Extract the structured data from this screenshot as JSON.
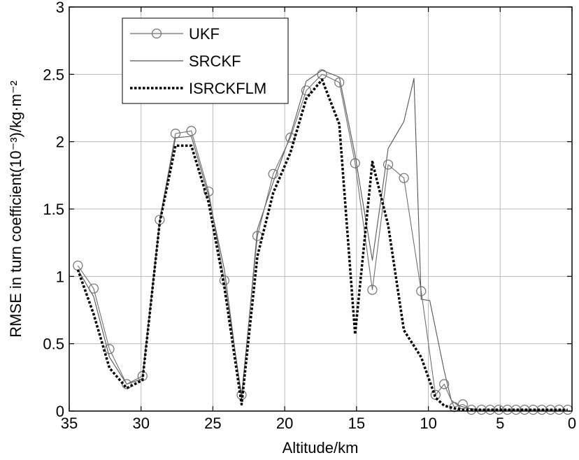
{
  "chart_data": {
    "type": "line",
    "xlabel": "Altitude/km",
    "ylabel": "RMSE in turn coefficient(10⁻³)/kg·m⁻²",
    "xlim": [
      35,
      0
    ],
    "ylim": [
      0,
      3
    ],
    "x_reversed": true,
    "grid": true,
    "legend_position": "top-left",
    "x_ticks": [
      "35",
      "30",
      "25",
      "20",
      "15",
      "10",
      "5",
      "0"
    ],
    "x_tick_values": [
      35,
      30,
      25,
      20,
      15,
      10,
      5,
      0
    ],
    "y_ticks": [
      "0",
      "0.5",
      "1",
      "1.5",
      "2",
      "2.5",
      "3"
    ],
    "y_tick_values": [
      0,
      0.5,
      1,
      1.5,
      2,
      2.5,
      3
    ],
    "series": [
      {
        "name": "UKF",
        "style": "solid-circle",
        "color": "#707070",
        "x": [
          34.4,
          33.3,
          32.2,
          31.0,
          29.9,
          28.7,
          27.6,
          26.5,
          25.3,
          24.2,
          23.0,
          21.9,
          20.8,
          19.6,
          18.5,
          17.4,
          16.2,
          15.1,
          13.9,
          12.8,
          11.7,
          10.5,
          9.5,
          8.9,
          8.2,
          7.6,
          7.0,
          6.3,
          5.7,
          5.1,
          4.5,
          3.9,
          3.3,
          2.7,
          2.1,
          1.5,
          0.9,
          0.3
        ],
        "y": [
          1.08,
          0.91,
          0.46,
          0.2,
          0.26,
          1.42,
          2.06,
          2.08,
          1.63,
          0.97,
          0.12,
          1.3,
          1.76,
          2.03,
          2.38,
          2.5,
          2.44,
          1.84,
          0.9,
          1.83,
          1.73,
          0.89,
          0.12,
          0.2,
          0.03,
          0.05,
          0.01,
          0.01,
          0.01,
          0.01,
          0.01,
          0.01,
          0.01,
          0.01,
          0.01,
          0.01,
          0.01,
          0.01
        ]
      },
      {
        "name": "SRCKF",
        "style": "solid",
        "color": "#555555",
        "x": [
          34.4,
          33.3,
          32.2,
          31.0,
          29.9,
          28.7,
          27.6,
          26.5,
          25.3,
          24.2,
          23.0,
          21.9,
          20.8,
          19.6,
          18.5,
          17.4,
          16.2,
          15.1,
          13.9,
          12.8,
          11.7,
          11.0,
          10.5,
          9.9,
          8.9,
          8.4,
          7.9,
          7.2,
          6.5,
          5.8,
          5.0,
          4.0,
          3.0,
          2.0,
          1.0,
          0.3
        ],
        "y": [
          1.05,
          0.85,
          0.4,
          0.2,
          0.24,
          1.4,
          2.03,
          2.04,
          1.6,
          1.05,
          0.08,
          1.35,
          1.7,
          2.05,
          2.45,
          2.53,
          2.48,
          1.9,
          1.12,
          1.95,
          2.15,
          2.47,
          0.83,
          0.82,
          0.3,
          0.08,
          0.04,
          0.02,
          0.01,
          0.01,
          0.01,
          0.01,
          0.01,
          0.01,
          0.01,
          0.01
        ]
      },
      {
        "name": "ISRCKFLM",
        "style": "dotted",
        "color": "#000000",
        "x": [
          34.4,
          33.3,
          32.2,
          31.0,
          29.9,
          28.7,
          27.6,
          26.5,
          25.3,
          24.2,
          23.0,
          21.9,
          20.8,
          19.6,
          18.5,
          17.4,
          16.2,
          15.1,
          13.9,
          12.8,
          11.7,
          10.5,
          9.5,
          8.9,
          8.2,
          7.6,
          7.0,
          6.3,
          5.5,
          4.5,
          3.0,
          2.0,
          1.0,
          0.3
        ],
        "y": [
          1.05,
          0.72,
          0.32,
          0.17,
          0.23,
          1.4,
          1.97,
          1.97,
          1.55,
          0.92,
          0.05,
          1.15,
          1.62,
          1.92,
          2.32,
          2.46,
          2.13,
          0.57,
          1.85,
          1.38,
          0.6,
          0.4,
          0.1,
          0.04,
          0.02,
          0.01,
          0.01,
          0.01,
          0.01,
          0.01,
          0.01,
          0.01,
          0.01,
          0.01
        ]
      }
    ]
  }
}
